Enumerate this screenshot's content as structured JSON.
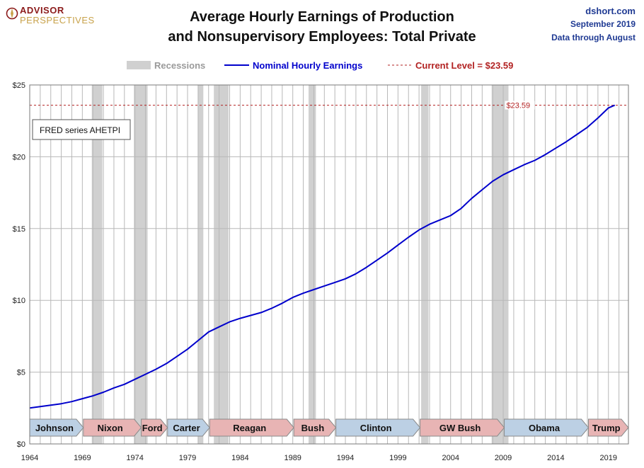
{
  "header": {
    "logo_line1": "ADVISOR",
    "logo_line2": "PERSPECTIVES",
    "title_line1": "Average Hourly Earnings of Production",
    "title_line2": "and Nonsupervisory Employees: Total Private",
    "site": "dshort.com",
    "date": "September 2019",
    "data_through": "Data through August"
  },
  "colors": {
    "series": "#0000cc",
    "current_line": "#b22222",
    "recession": "#d0d0d0",
    "democrat": "#bcd0e4",
    "republican": "#e8b4b4",
    "grid": "#b8b8b8"
  },
  "chart_data": {
    "type": "line",
    "legend": {
      "recessions": "Recessions",
      "series": "Nominal Hourly Earnings",
      "current": "Current Level = $23.59"
    },
    "note": "FRED series AHETPI",
    "current_label": "$23.59",
    "current_value": 23.59,
    "xlim": [
      1964,
      2020.9
    ],
    "ylim": [
      0,
      25
    ],
    "y_ticks": [
      0,
      5,
      10,
      15,
      20,
      25
    ],
    "y_tick_labels": [
      "$0",
      "$5",
      "$10",
      "$15",
      "$20",
      "$25"
    ],
    "x_ticks": [
      1964,
      1969,
      1974,
      1979,
      1984,
      1989,
      1994,
      1999,
      2004,
      2009,
      2014,
      2019
    ],
    "x_tick_labels": [
      "1964",
      "1969",
      "1974",
      "1979",
      "1984",
      "1989",
      "1994",
      "1999",
      "2004",
      "2009",
      "2014",
      "2019"
    ],
    "series": [
      {
        "name": "Nominal Hourly Earnings",
        "x": [
          1964.0,
          1965.0,
          1966.0,
          1967.0,
          1968.0,
          1969.0,
          1970.0,
          1971.0,
          1972.0,
          1973.0,
          1974.0,
          1975.0,
          1976.0,
          1977.0,
          1978.0,
          1979.0,
          1980.0,
          1981.0,
          1982.0,
          1983.0,
          1984.0,
          1985.0,
          1986.0,
          1987.0,
          1988.0,
          1989.0,
          1990.0,
          1991.0,
          1992.0,
          1993.0,
          1994.0,
          1995.0,
          1996.0,
          1997.0,
          1998.0,
          1999.0,
          2000.0,
          2001.0,
          2002.0,
          2003.0,
          2004.0,
          2005.0,
          2006.0,
          2007.0,
          2008.0,
          2009.0,
          2010.0,
          2011.0,
          2012.0,
          2013.0,
          2014.0,
          2015.0,
          2016.0,
          2017.0,
          2018.0,
          2019.0,
          2019.6
        ],
        "y": [
          2.5,
          2.6,
          2.7,
          2.8,
          2.95,
          3.15,
          3.35,
          3.6,
          3.9,
          4.15,
          4.5,
          4.85,
          5.2,
          5.6,
          6.1,
          6.6,
          7.2,
          7.8,
          8.15,
          8.5,
          8.75,
          8.95,
          9.15,
          9.45,
          9.8,
          10.2,
          10.5,
          10.75,
          11.0,
          11.25,
          11.5,
          11.85,
          12.3,
          12.8,
          13.3,
          13.85,
          14.4,
          14.9,
          15.3,
          15.6,
          15.9,
          16.4,
          17.1,
          17.7,
          18.3,
          18.75,
          19.1,
          19.45,
          19.75,
          20.15,
          20.6,
          21.05,
          21.55,
          22.05,
          22.7,
          23.4,
          23.59
        ]
      }
    ],
    "recessions": [
      [
        1969.9,
        1970.9
      ],
      [
        1973.9,
        1975.2
      ],
      [
        1980.0,
        1980.5
      ],
      [
        1981.5,
        1982.9
      ],
      [
        1990.5,
        1991.2
      ],
      [
        2001.2,
        2001.9
      ],
      [
        2007.9,
        2009.5
      ]
    ],
    "presidents": [
      {
        "name": "Johnson",
        "start": 1964.0,
        "end": 1969.1,
        "party": "D"
      },
      {
        "name": "Nixon",
        "start": 1969.1,
        "end": 1974.6,
        "party": "R"
      },
      {
        "name": "Ford",
        "start": 1974.6,
        "end": 1977.1,
        "party": "R"
      },
      {
        "name": "Carter",
        "start": 1977.1,
        "end": 1981.1,
        "party": "D"
      },
      {
        "name": "Reagan",
        "start": 1981.1,
        "end": 1989.1,
        "party": "R"
      },
      {
        "name": "Bush",
        "start": 1989.1,
        "end": 1993.1,
        "party": "R"
      },
      {
        "name": "Clinton",
        "start": 1993.1,
        "end": 2001.1,
        "party": "D"
      },
      {
        "name": "GW Bush",
        "start": 2001.1,
        "end": 2009.1,
        "party": "R"
      },
      {
        "name": "Obama",
        "start": 2009.1,
        "end": 2017.1,
        "party": "D"
      },
      {
        "name": "Trump",
        "start": 2017.1,
        "end": 2020.9,
        "party": "R"
      }
    ]
  }
}
